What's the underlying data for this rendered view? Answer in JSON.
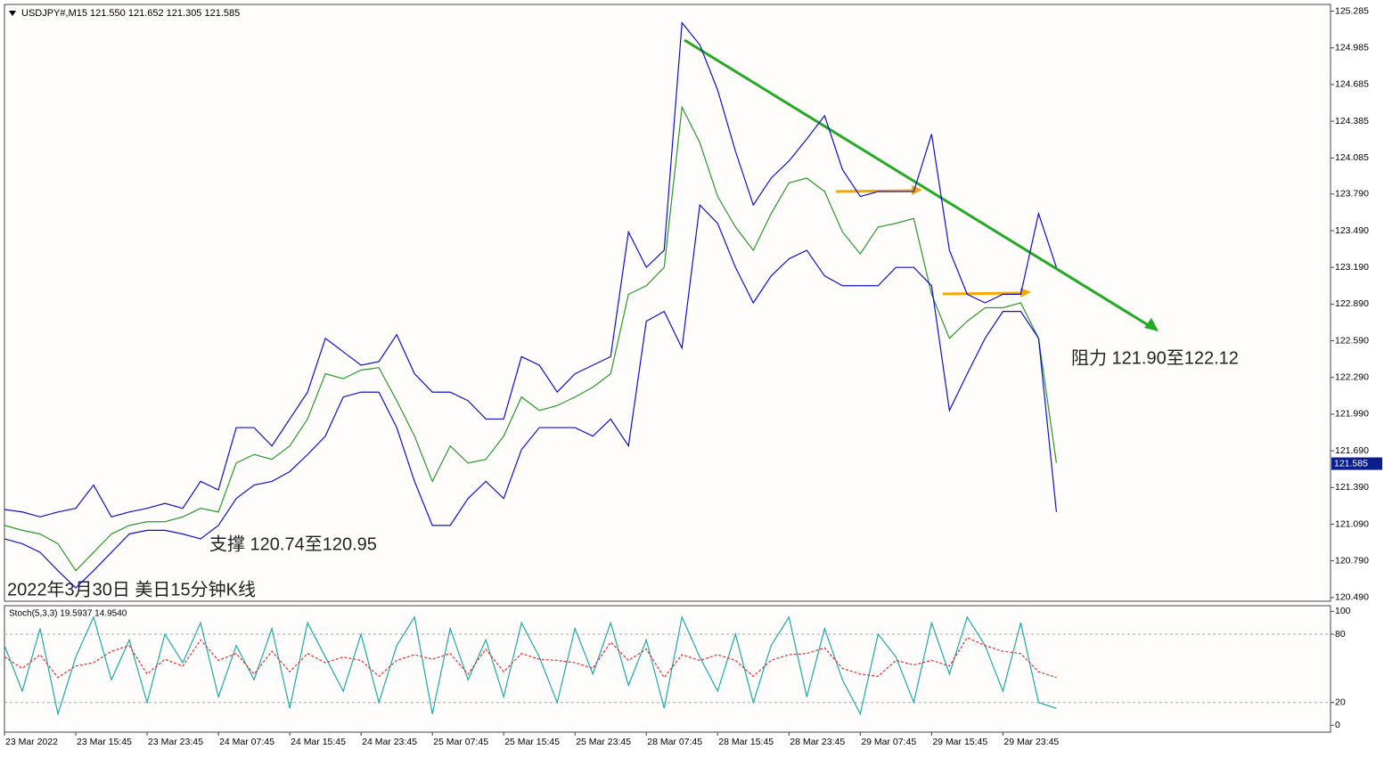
{
  "chart_data": [
    {
      "type": "line",
      "title": "USDJPY#,M15  121.550 121.652 121.305 121.585",
      "annotations": [
        "支撑 120.74至120.95",
        "阻力 121.90至122.12",
        "2022年3月30日 美日15分钟K线"
      ],
      "current_price": {
        "value": 121.585,
        "label": "121.585"
      },
      "x": [
        0,
        8,
        16,
        24,
        32,
        40,
        48,
        56,
        64,
        72,
        80,
        88,
        96,
        104,
        112,
        120,
        128,
        136,
        144,
        152,
        160,
        168,
        176,
        184,
        192,
        200,
        208,
        216,
        224,
        232,
        240,
        248,
        256,
        264,
        272,
        280,
        288,
        296,
        304,
        312,
        320,
        328,
        336,
        344,
        352,
        360,
        368,
        376,
        384,
        392,
        400,
        408,
        416,
        424,
        432,
        440,
        448,
        456,
        464,
        472
      ],
      "xlim": [
        0,
        595
      ],
      "ylim": [
        120.46,
        125.34
      ],
      "yticks": [
        125.285,
        124.985,
        124.685,
        124.385,
        124.085,
        {
          "value": 123.79,
          "label": "123.790"
        },
        {
          "value": 123.49,
          "label": "123.490"
        },
        {
          "value": 123.19,
          "label": "123.190"
        },
        {
          "value": 122.89,
          "label": "122.890"
        },
        {
          "value": 122.59,
          "label": "122.590"
        },
        {
          "value": 122.29,
          "label": "122.290"
        },
        {
          "value": 121.99,
          "label": "121.990"
        },
        {
          "value": 121.69,
          "label": "121.690"
        },
        {
          "value": 121.39,
          "label": "121.390"
        },
        {
          "value": 121.09,
          "label": "121.090"
        },
        {
          "value": 120.79,
          "label": "120.790"
        },
        {
          "value": 120.49,
          "label": "120.490"
        }
      ],
      "series": [
        {
          "color": "#2a9a2a",
          "values": [
            121.08,
            121.04,
            121.01,
            120.93,
            120.71,
            120.86,
            121.01,
            121.08,
            121.11,
            121.11,
            121.15,
            121.22,
            121.19,
            121.59,
            121.66,
            121.62,
            121.73,
            121.95,
            122.32,
            122.28,
            122.35,
            122.37,
            122.1,
            121.81,
            121.44,
            121.73,
            121.59,
            121.62,
            121.81,
            122.13,
            122.02,
            122.06,
            122.13,
            122.21,
            122.32,
            122.97,
            123.04,
            123.19,
            124.5,
            124.21,
            123.77,
            123.52,
            123.33,
            123.63,
            123.88,
            123.92,
            123.81,
            123.48,
            123.3,
            123.52,
            123.55,
            123.59,
            122.97,
            122.61,
            122.75,
            122.86,
            122.86,
            122.9,
            122.61,
            121.59
          ]
        },
        {
          "color": "#1010cc",
          "values": [
            121.21,
            121.19,
            121.15,
            121.19,
            121.22,
            121.41,
            121.15,
            121.19,
            121.22,
            121.26,
            121.22,
            121.44,
            121.37,
            121.88,
            121.88,
            121.73,
            121.95,
            122.17,
            122.61,
            122.5,
            122.39,
            122.42,
            122.64,
            122.32,
            122.17,
            122.17,
            122.1,
            121.95,
            121.95,
            122.46,
            122.39,
            122.17,
            122.32,
            122.39,
            122.46,
            123.48,
            123.19,
            123.33,
            125.19,
            125.01,
            124.64,
            124.14,
            123.7,
            123.92,
            124.06,
            124.24,
            124.43,
            123.99,
            123.77,
            123.81,
            123.81,
            123.81,
            124.28,
            123.33,
            122.97,
            122.9,
            122.97,
            122.97,
            123.63,
            123.19
          ]
        },
        {
          "color": "#1010cc",
          "values": [
            120.97,
            120.93,
            120.86,
            120.71,
            120.57,
            120.71,
            120.86,
            121.01,
            121.04,
            121.04,
            121.01,
            120.97,
            121.08,
            121.3,
            121.41,
            121.44,
            121.52,
            121.66,
            121.81,
            122.13,
            122.17,
            122.17,
            121.88,
            121.44,
            121.08,
            121.08,
            121.3,
            121.44,
            121.3,
            121.7,
            121.88,
            121.88,
            121.88,
            121.81,
            121.95,
            121.73,
            122.75,
            122.83,
            122.53,
            123.7,
            123.55,
            123.19,
            122.9,
            123.12,
            123.26,
            123.33,
            123.12,
            123.04,
            123.04,
            123.04,
            123.19,
            123.19,
            123.04,
            122.02,
            122.32,
            122.61,
            122.83,
            122.83,
            122.61,
            121.19
          ]
        }
      ]
    },
    {
      "type": "line",
      "title": "Stoch(5,3,3) 19.5937 14.9540",
      "x": [
        0,
        8,
        16,
        24,
        32,
        40,
        48,
        56,
        64,
        72,
        80,
        88,
        96,
        104,
        112,
        120,
        128,
        136,
        144,
        152,
        160,
        168,
        176,
        184,
        192,
        200,
        208,
        216,
        224,
        232,
        240,
        248,
        256,
        264,
        272,
        280,
        288,
        296,
        304,
        312,
        320,
        328,
        336,
        344,
        352,
        360,
        368,
        376,
        384,
        392,
        400,
        408,
        416,
        424,
        432,
        440,
        448,
        456,
        464,
        472
      ],
      "xlim": [
        0,
        595
      ],
      "ylim": [
        -6,
        105
      ],
      "yticks": [
        100,
        80,
        20,
        0
      ],
      "dashed_levels": [
        80,
        20
      ],
      "xticks": [
        {
          "value": 0,
          "label": "23 Mar 2022"
        },
        {
          "value": 32,
          "label": "23 Mar 15:45"
        },
        {
          "value": 64,
          "label": "23 Mar 23:45"
        },
        {
          "value": 96,
          "label": "24 Mar 07:45"
        },
        {
          "value": 128,
          "label": "24 Mar 15:45"
        },
        {
          "value": 160,
          "label": "24 Mar 23:45"
        },
        {
          "value": 192,
          "label": "25 Mar 07:45"
        },
        {
          "value": 224,
          "label": "25 Mar 15:45"
        },
        {
          "value": 256,
          "label": "25 Mar 23:45"
        },
        {
          "value": 288,
          "label": "28 Mar 07:45"
        },
        {
          "value": 320,
          "label": "28 Mar 15:45"
        },
        {
          "value": 352,
          "label": "28 Mar 23:45"
        },
        {
          "value": 384,
          "label": "29 Mar 07:45"
        },
        {
          "value": 416,
          "label": "29 Mar 15:45"
        },
        {
          "value": 448,
          "label": "29 Mar 23:45"
        }
      ],
      "series": [
        {
          "color": "#20a8a8",
          "values": [
            70,
            30,
            85,
            10,
            60,
            95,
            40,
            75,
            20,
            80,
            55,
            90,
            25,
            70,
            40,
            85,
            15,
            90,
            60,
            30,
            80,
            20,
            70,
            95,
            10,
            85,
            40,
            75,
            25,
            90,
            60,
            20,
            85,
            45,
            90,
            35,
            75,
            15,
            95,
            60,
            30,
            80,
            20,
            70,
            95,
            25,
            85,
            40,
            10,
            80,
            60,
            20,
            90,
            45,
            95,
            70,
            30,
            90,
            20,
            15
          ]
        },
        {
          "color": "#e03030",
          "dashed": true,
          "values": [
            60,
            50,
            62,
            42,
            52,
            55,
            65,
            70,
            45,
            58,
            52,
            75,
            57,
            63,
            45,
            65,
            47,
            63,
            55,
            60,
            57,
            43,
            57,
            62,
            58,
            63,
            45,
            67,
            47,
            63,
            58,
            57,
            55,
            50,
            73,
            57,
            67,
            42,
            62,
            57,
            62,
            57,
            43,
            57,
            62,
            63,
            68,
            50,
            45,
            43,
            57,
            53,
            57,
            52,
            77,
            70,
            65,
            63,
            47,
            42
          ]
        }
      ]
    }
  ]
}
